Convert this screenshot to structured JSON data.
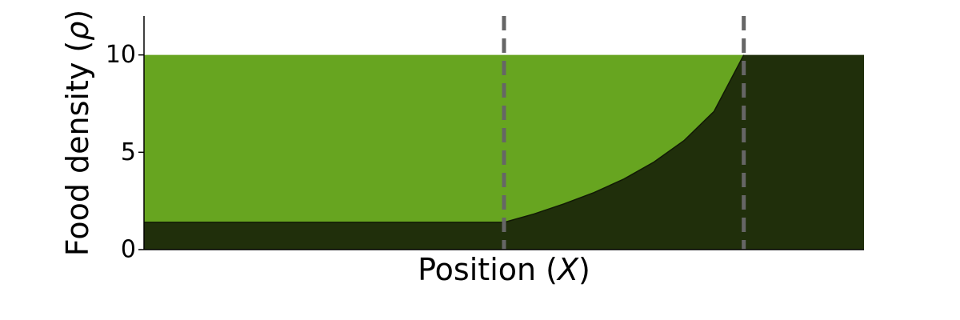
{
  "chart_data": {
    "type": "area",
    "xlabel_text": "Position (",
    "xlabel_symbol": "X",
    "xlabel_close": ")",
    "ylabel_text": "Food density (",
    "ylabel_symbol": "ρ",
    "ylabel_close": ")",
    "xlim": [
      0,
      1
    ],
    "ylim": [
      0,
      12
    ],
    "yticks": [
      0,
      5,
      10
    ],
    "ytick_labels": [
      "0",
      "5",
      "10"
    ],
    "grid": false,
    "legend": false,
    "dashed_lines_x": [
      0.5,
      0.833
    ],
    "series": [
      {
        "values_x": [
          0,
          0.5,
          0.5417,
          0.5833,
          0.625,
          0.6667,
          0.7083,
          0.75,
          0.7917,
          0.833,
          1.0
        ],
        "values_y": [
          1.4,
          1.4,
          1.83,
          2.35,
          2.93,
          3.63,
          4.5,
          5.6,
          7.1,
          10.0,
          10.0
        ],
        "color": "#202f0b"
      },
      {
        "values_x": [
          0,
          0.5,
          0.5417,
          0.5833,
          0.625,
          0.6667,
          0.7083,
          0.75,
          0.7917,
          0.833
        ],
        "values_y_upper": [
          10,
          10,
          10,
          10,
          10,
          10,
          10,
          10,
          10,
          10
        ],
        "values_y_lower": [
          1.4,
          1.4,
          1.83,
          2.35,
          2.93,
          3.63,
          4.5,
          5.6,
          7.1,
          10.0
        ],
        "color": "#67a520"
      }
    ],
    "dashed_line_color": "#666666"
  }
}
